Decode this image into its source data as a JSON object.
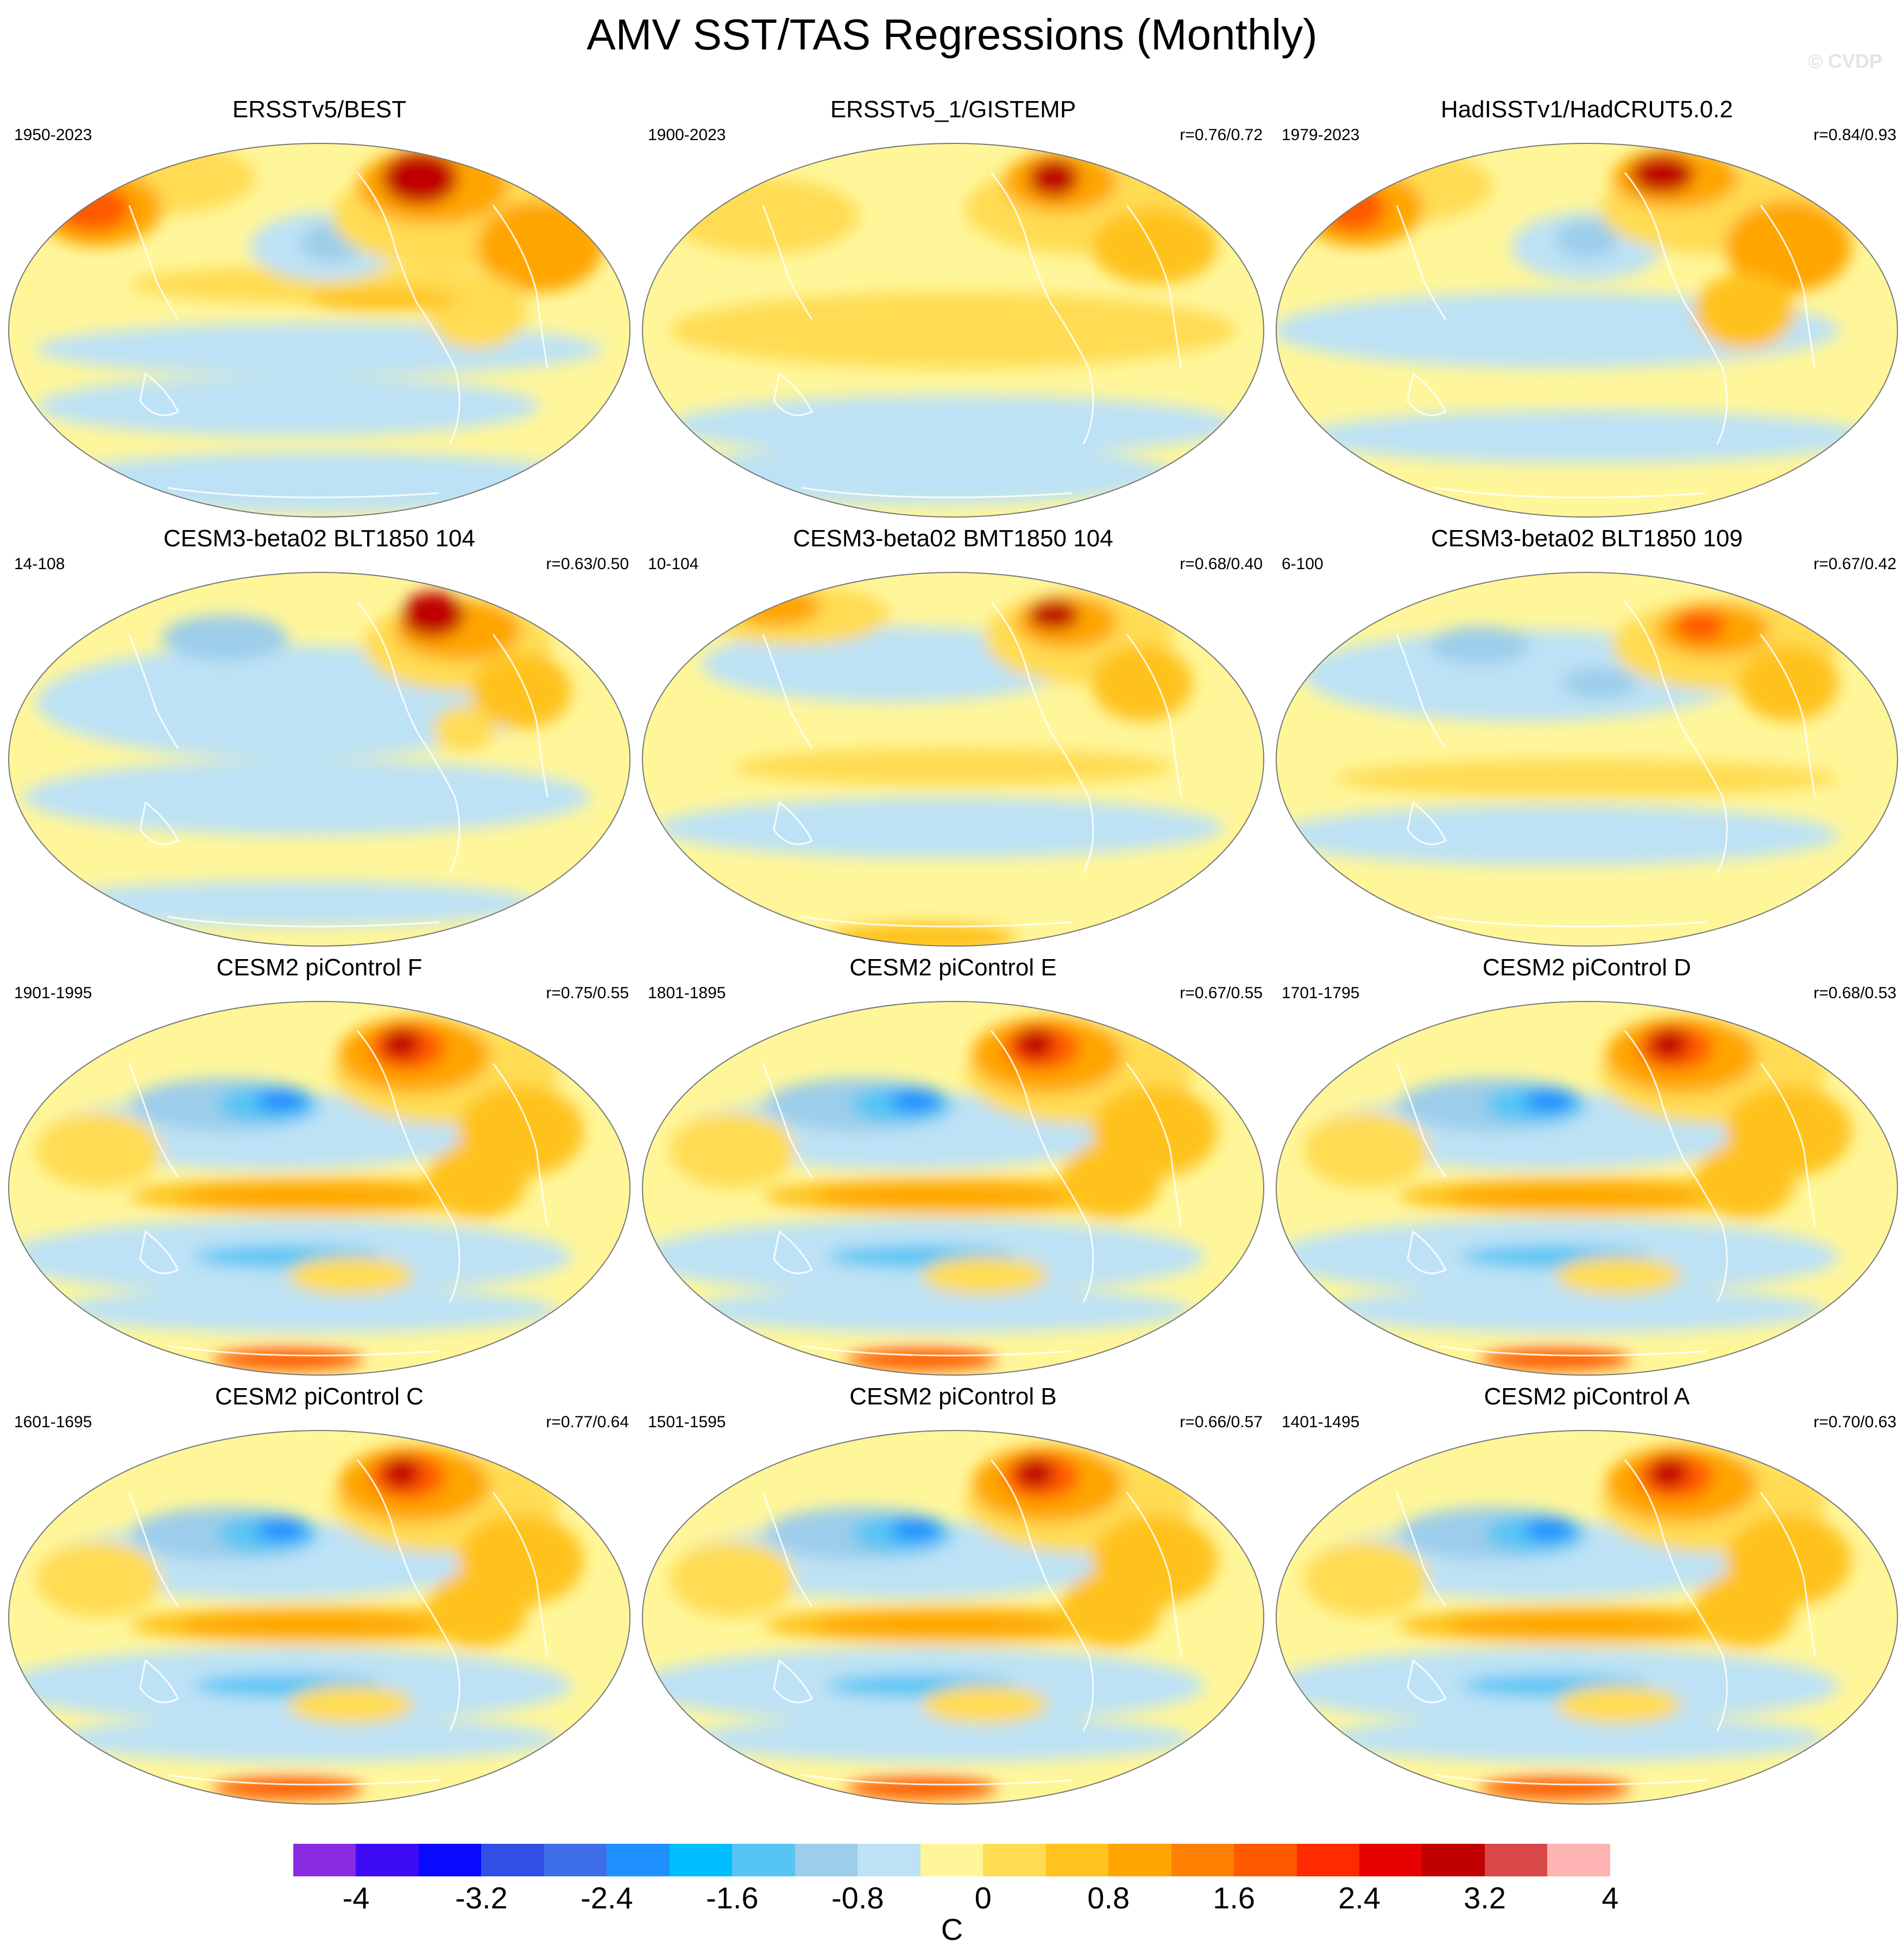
{
  "title": "AMV SST/TAS Regressions (Monthly)",
  "watermark": "© CVDP",
  "panels": [
    {
      "title": "ERSSTv5/BEST",
      "period": "1950-2023",
      "corr": "",
      "pattern": "obs_a"
    },
    {
      "title": "ERSSTv5_1/GISTEMP",
      "period": "1900-2023",
      "corr": "r=0.76/0.72",
      "pattern": "obs_b"
    },
    {
      "title": "HadISSTv1/HadCRUT5.0.2",
      "period": "1979-2023",
      "corr": "r=0.84/0.93",
      "pattern": "obs_c"
    },
    {
      "title": "CESM3-beta02 BLT1850 104",
      "period": "14-108",
      "corr": "r=0.63/0.50",
      "pattern": "beta_a"
    },
    {
      "title": "CESM3-beta02 BMT1850 104",
      "period": "10-104",
      "corr": "r=0.68/0.40",
      "pattern": "beta_b"
    },
    {
      "title": "CESM3-beta02 BLT1850 109",
      "period": "6-100",
      "corr": "r=0.67/0.42",
      "pattern": "beta_c"
    },
    {
      "title": "CESM2 piControl F",
      "period": "1901-1995",
      "corr": "r=0.75/0.55",
      "pattern": "pi"
    },
    {
      "title": "CESM2 piControl E",
      "period": "1801-1895",
      "corr": "r=0.67/0.55",
      "pattern": "pi"
    },
    {
      "title": "CESM2 piControl D",
      "period": "1701-1795",
      "corr": "r=0.68/0.53",
      "pattern": "pi"
    },
    {
      "title": "CESM2 piControl C",
      "period": "1601-1695",
      "corr": "r=0.77/0.64",
      "pattern": "pi"
    },
    {
      "title": "CESM2 piControl B",
      "period": "1501-1595",
      "corr": "r=0.66/0.57",
      "pattern": "pi"
    },
    {
      "title": "CESM2 piControl A",
      "period": "1401-1495",
      "corr": "r=0.70/0.63",
      "pattern": "pi"
    }
  ],
  "colorbar": {
    "colors": [
      "#8a2be2",
      "#3d0cf5",
      "#0a0aff",
      "#2f4fe6",
      "#3f6fe8",
      "#1e90ff",
      "#00bfff",
      "#56c5f4",
      "#9ccdea",
      "#bde2f5",
      "#fff69a",
      "#ffdc52",
      "#ffc21e",
      "#ffa500",
      "#ff8000",
      "#ff5a00",
      "#ff2a00",
      "#e60000",
      "#c00000",
      "#d84848",
      "#ffb4b4"
    ],
    "labels": [
      "-4",
      "-3.2",
      "-2.4",
      "-1.6",
      "-0.8",
      "0",
      "0.8",
      "1.6",
      "2.4",
      "3.2",
      "4"
    ],
    "unit": "C"
  },
  "palette": {
    "ocean_base": "#fff69a",
    "cool_light": "#bde2f5",
    "cool_mid": "#9ccdea",
    "cool_deep": "#56c5f4",
    "cool_strong": "#1e90ff",
    "warm_light": "#ffdc52",
    "warm_mid": "#ffc21e",
    "warm_strong": "#ffa500",
    "hot": "#ff5a00",
    "very_hot": "#c00000",
    "coast": "#ffffff",
    "border": "#777777"
  }
}
